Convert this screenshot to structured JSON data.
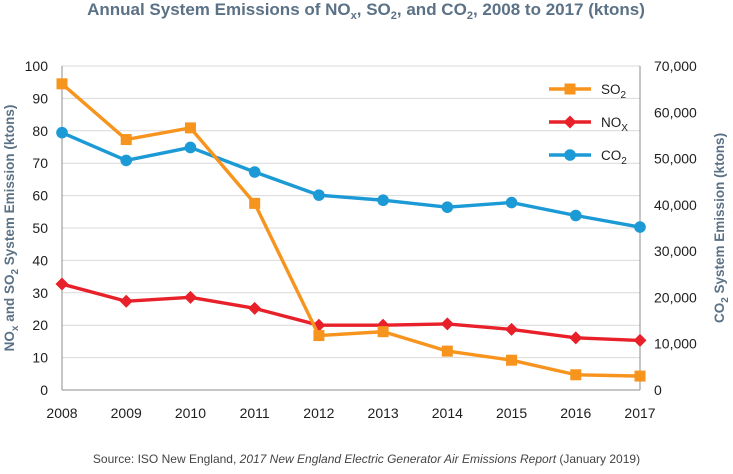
{
  "title": {
    "prefix": "Annual System Emissions of NO",
    "nox_sub": "x",
    "sep1": ", SO",
    "so2_sub": "2",
    "sep2": ", and CO",
    "co2_sub": "2",
    "suffix": ", 2008 to 2017 (ktons)"
  },
  "source": {
    "prefix": "Source: ISO New England, ",
    "italic": "2017 New England Electric Generator Air Emissions Report",
    "suffix": " (January 2019)"
  },
  "chart_data": {
    "type": "line",
    "title": "Annual System Emissions of NOx, SO2, and CO2, 2008 to 2017 (ktons)",
    "x": [
      "2008",
      "2009",
      "2010",
      "2011",
      "2012",
      "2013",
      "2014",
      "2015",
      "2016",
      "2017"
    ],
    "y_left": {
      "label": {
        "a": "NO",
        "a_sub": "x",
        "b": " and SO",
        "b_sub": "2",
        "c": " System Emission (ktons)"
      },
      "range": [
        0,
        100
      ],
      "ticks": [
        "0",
        "10",
        "20",
        "30",
        "40",
        "50",
        "60",
        "70",
        "80",
        "90",
        "100"
      ]
    },
    "y_right": {
      "label": {
        "a": "CO",
        "a_sub": "2",
        "b": " System Emission (ktons)"
      },
      "range": [
        0,
        70000
      ],
      "ticks": [
        "0",
        "10,000",
        "20,000",
        "30,000",
        "40,000",
        "50,000",
        "60,000",
        "70,000"
      ]
    },
    "series": [
      {
        "name": "SO2",
        "label_main": "SO",
        "label_sub": "2",
        "axis": "left",
        "color": "#f7941d",
        "marker": "square",
        "values": [
          94.5,
          77.3,
          80.9,
          57.6,
          16.8,
          18.0,
          12.0,
          9.2,
          4.7,
          4.3
        ]
      },
      {
        "name": "NOx",
        "label_main": "NO",
        "label_sub": "X",
        "axis": "left",
        "color": "#e8202a",
        "marker": "diamond",
        "values": [
          32.7,
          27.4,
          28.6,
          25.2,
          20.0,
          20.0,
          20.4,
          18.7,
          16.1,
          15.3
        ]
      },
      {
        "name": "CO2",
        "label_main": "CO",
        "label_sub": "2",
        "axis": "right",
        "color": "#1b9ad6",
        "marker": "circle",
        "values": [
          55600,
          49600,
          52400,
          47100,
          42100,
          41000,
          39500,
          40500,
          37700,
          35200
        ]
      }
    ],
    "grid": true,
    "legend": "top-right"
  }
}
